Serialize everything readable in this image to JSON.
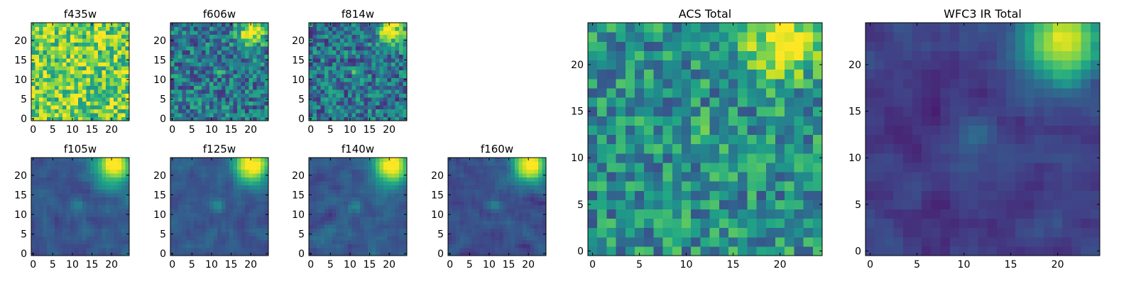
{
  "chart_data": [
    {
      "type": "heatmap",
      "title": "f435w",
      "colormap": "viridis",
      "grid": false,
      "xlim": [
        0,
        24
      ],
      "ylim": [
        0,
        24
      ],
      "x_ticks": [
        0,
        5,
        10,
        15,
        20
      ],
      "y_ticks": [
        0,
        5,
        10,
        15,
        20
      ],
      "pattern": "noise",
      "level": 0.78
    },
    {
      "type": "heatmap",
      "title": "f606w",
      "colormap": "viridis",
      "grid": false,
      "xlim": [
        0,
        24
      ],
      "ylim": [
        0,
        24
      ],
      "x_ticks": [
        0,
        5,
        10,
        15,
        20
      ],
      "y_ticks": [
        0,
        5,
        10,
        15,
        20
      ],
      "pattern": "noisy-source",
      "level": 0.4
    },
    {
      "type": "heatmap",
      "title": "f814w",
      "colormap": "viridis",
      "grid": false,
      "xlim": [
        0,
        24
      ],
      "ylim": [
        0,
        24
      ],
      "x_ticks": [
        0,
        5,
        10,
        15,
        20
      ],
      "y_ticks": [
        0,
        5,
        10,
        15,
        20
      ],
      "pattern": "noisy-source",
      "level": 0.38
    },
    {
      "type": "heatmap",
      "title": "f105w",
      "colormap": "viridis",
      "grid": false,
      "xlim": [
        0,
        24
      ],
      "ylim": [
        0,
        24
      ],
      "x_ticks": [
        0,
        5,
        10,
        15,
        20
      ],
      "y_ticks": [
        0,
        5,
        10,
        15,
        20
      ],
      "pattern": "smooth-source",
      "level": 0.28
    },
    {
      "type": "heatmap",
      "title": "f125w",
      "colormap": "viridis",
      "grid": false,
      "xlim": [
        0,
        24
      ],
      "ylim": [
        0,
        24
      ],
      "x_ticks": [
        0,
        5,
        10,
        15,
        20
      ],
      "y_ticks": [
        0,
        5,
        10,
        15,
        20
      ],
      "pattern": "smooth-source",
      "level": 0.27
    },
    {
      "type": "heatmap",
      "title": "f140w",
      "colormap": "viridis",
      "grid": false,
      "xlim": [
        0,
        24
      ],
      "ylim": [
        0,
        24
      ],
      "x_ticks": [
        0,
        5,
        10,
        15,
        20
      ],
      "y_ticks": [
        0,
        5,
        10,
        15,
        20
      ],
      "pattern": "smooth-source",
      "level": 0.28
    },
    {
      "type": "heatmap",
      "title": "f160w",
      "colormap": "viridis",
      "grid": false,
      "xlim": [
        0,
        24
      ],
      "ylim": [
        0,
        24
      ],
      "x_ticks": [
        0,
        5,
        10,
        15,
        20
      ],
      "y_ticks": [
        0,
        5,
        10,
        15,
        20
      ],
      "pattern": "smooth-source",
      "level": 0.24
    },
    {
      "type": "heatmap",
      "title": "ACS Total",
      "colormap": "viridis",
      "grid": false,
      "xlim": [
        0,
        24
      ],
      "ylim": [
        0,
        24
      ],
      "x_ticks": [
        0,
        5,
        10,
        15,
        20
      ],
      "y_ticks": [
        0,
        5,
        10,
        15,
        20
      ],
      "pattern": "noisy-source",
      "level": 0.5
    },
    {
      "type": "heatmap",
      "title": "WFC3 IR Total",
      "colormap": "viridis",
      "grid": false,
      "xlim": [
        0,
        24
      ],
      "ylim": [
        0,
        24
      ],
      "x_ticks": [
        0,
        5,
        10,
        15,
        20
      ],
      "y_ticks": [
        0,
        5,
        10,
        15,
        20
      ],
      "pattern": "smooth-source",
      "level": 0.18
    }
  ]
}
